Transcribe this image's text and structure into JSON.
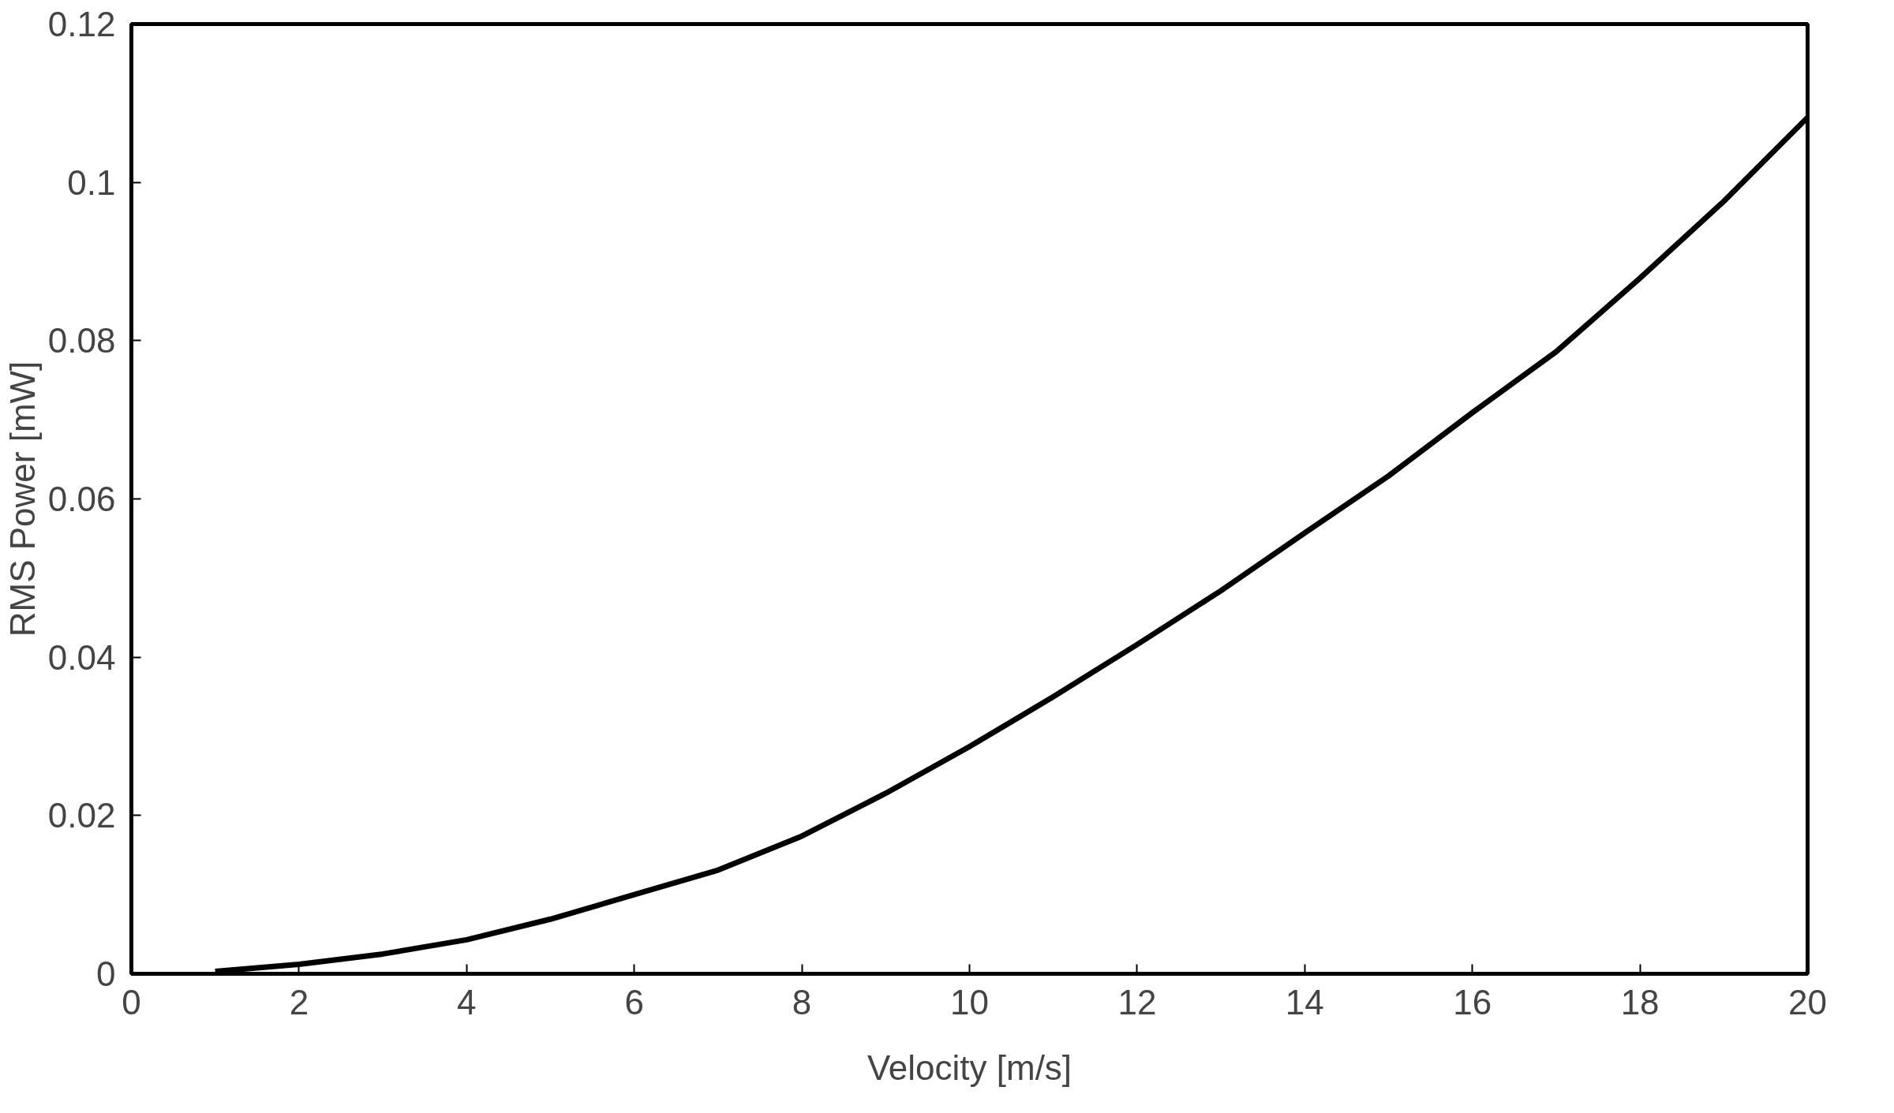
{
  "chart_data": {
    "type": "line",
    "xlabel": "Velocity [m/s]",
    "ylabel": "RMS Power [mW]",
    "x": [
      1,
      2,
      3,
      4,
      5,
      6,
      7,
      8,
      9,
      10,
      11,
      12,
      13,
      14,
      15,
      16,
      17,
      18,
      19,
      20
    ],
    "series": [
      {
        "color": "#000000",
        "values": [
          0.0003,
          0.0012,
          0.0025,
          0.0043,
          0.0069,
          0.01,
          0.0131,
          0.0174,
          0.0228,
          0.0287,
          0.035,
          0.0416,
          0.0484,
          0.0557,
          0.0629,
          0.0709,
          0.0786,
          0.0879,
          0.0976,
          0.1082
        ]
      }
    ],
    "xlim": [
      0,
      20
    ],
    "xticks": [
      0,
      2,
      4,
      6,
      8,
      10,
      12,
      14,
      16,
      18,
      20
    ],
    "ylim": [
      0,
      0.12
    ],
    "yticks": [
      0,
      0.02,
      0.04,
      0.06,
      0.08,
      0.1,
      0.12
    ],
    "grid": false,
    "marker": "none",
    "line_style": "solid"
  }
}
